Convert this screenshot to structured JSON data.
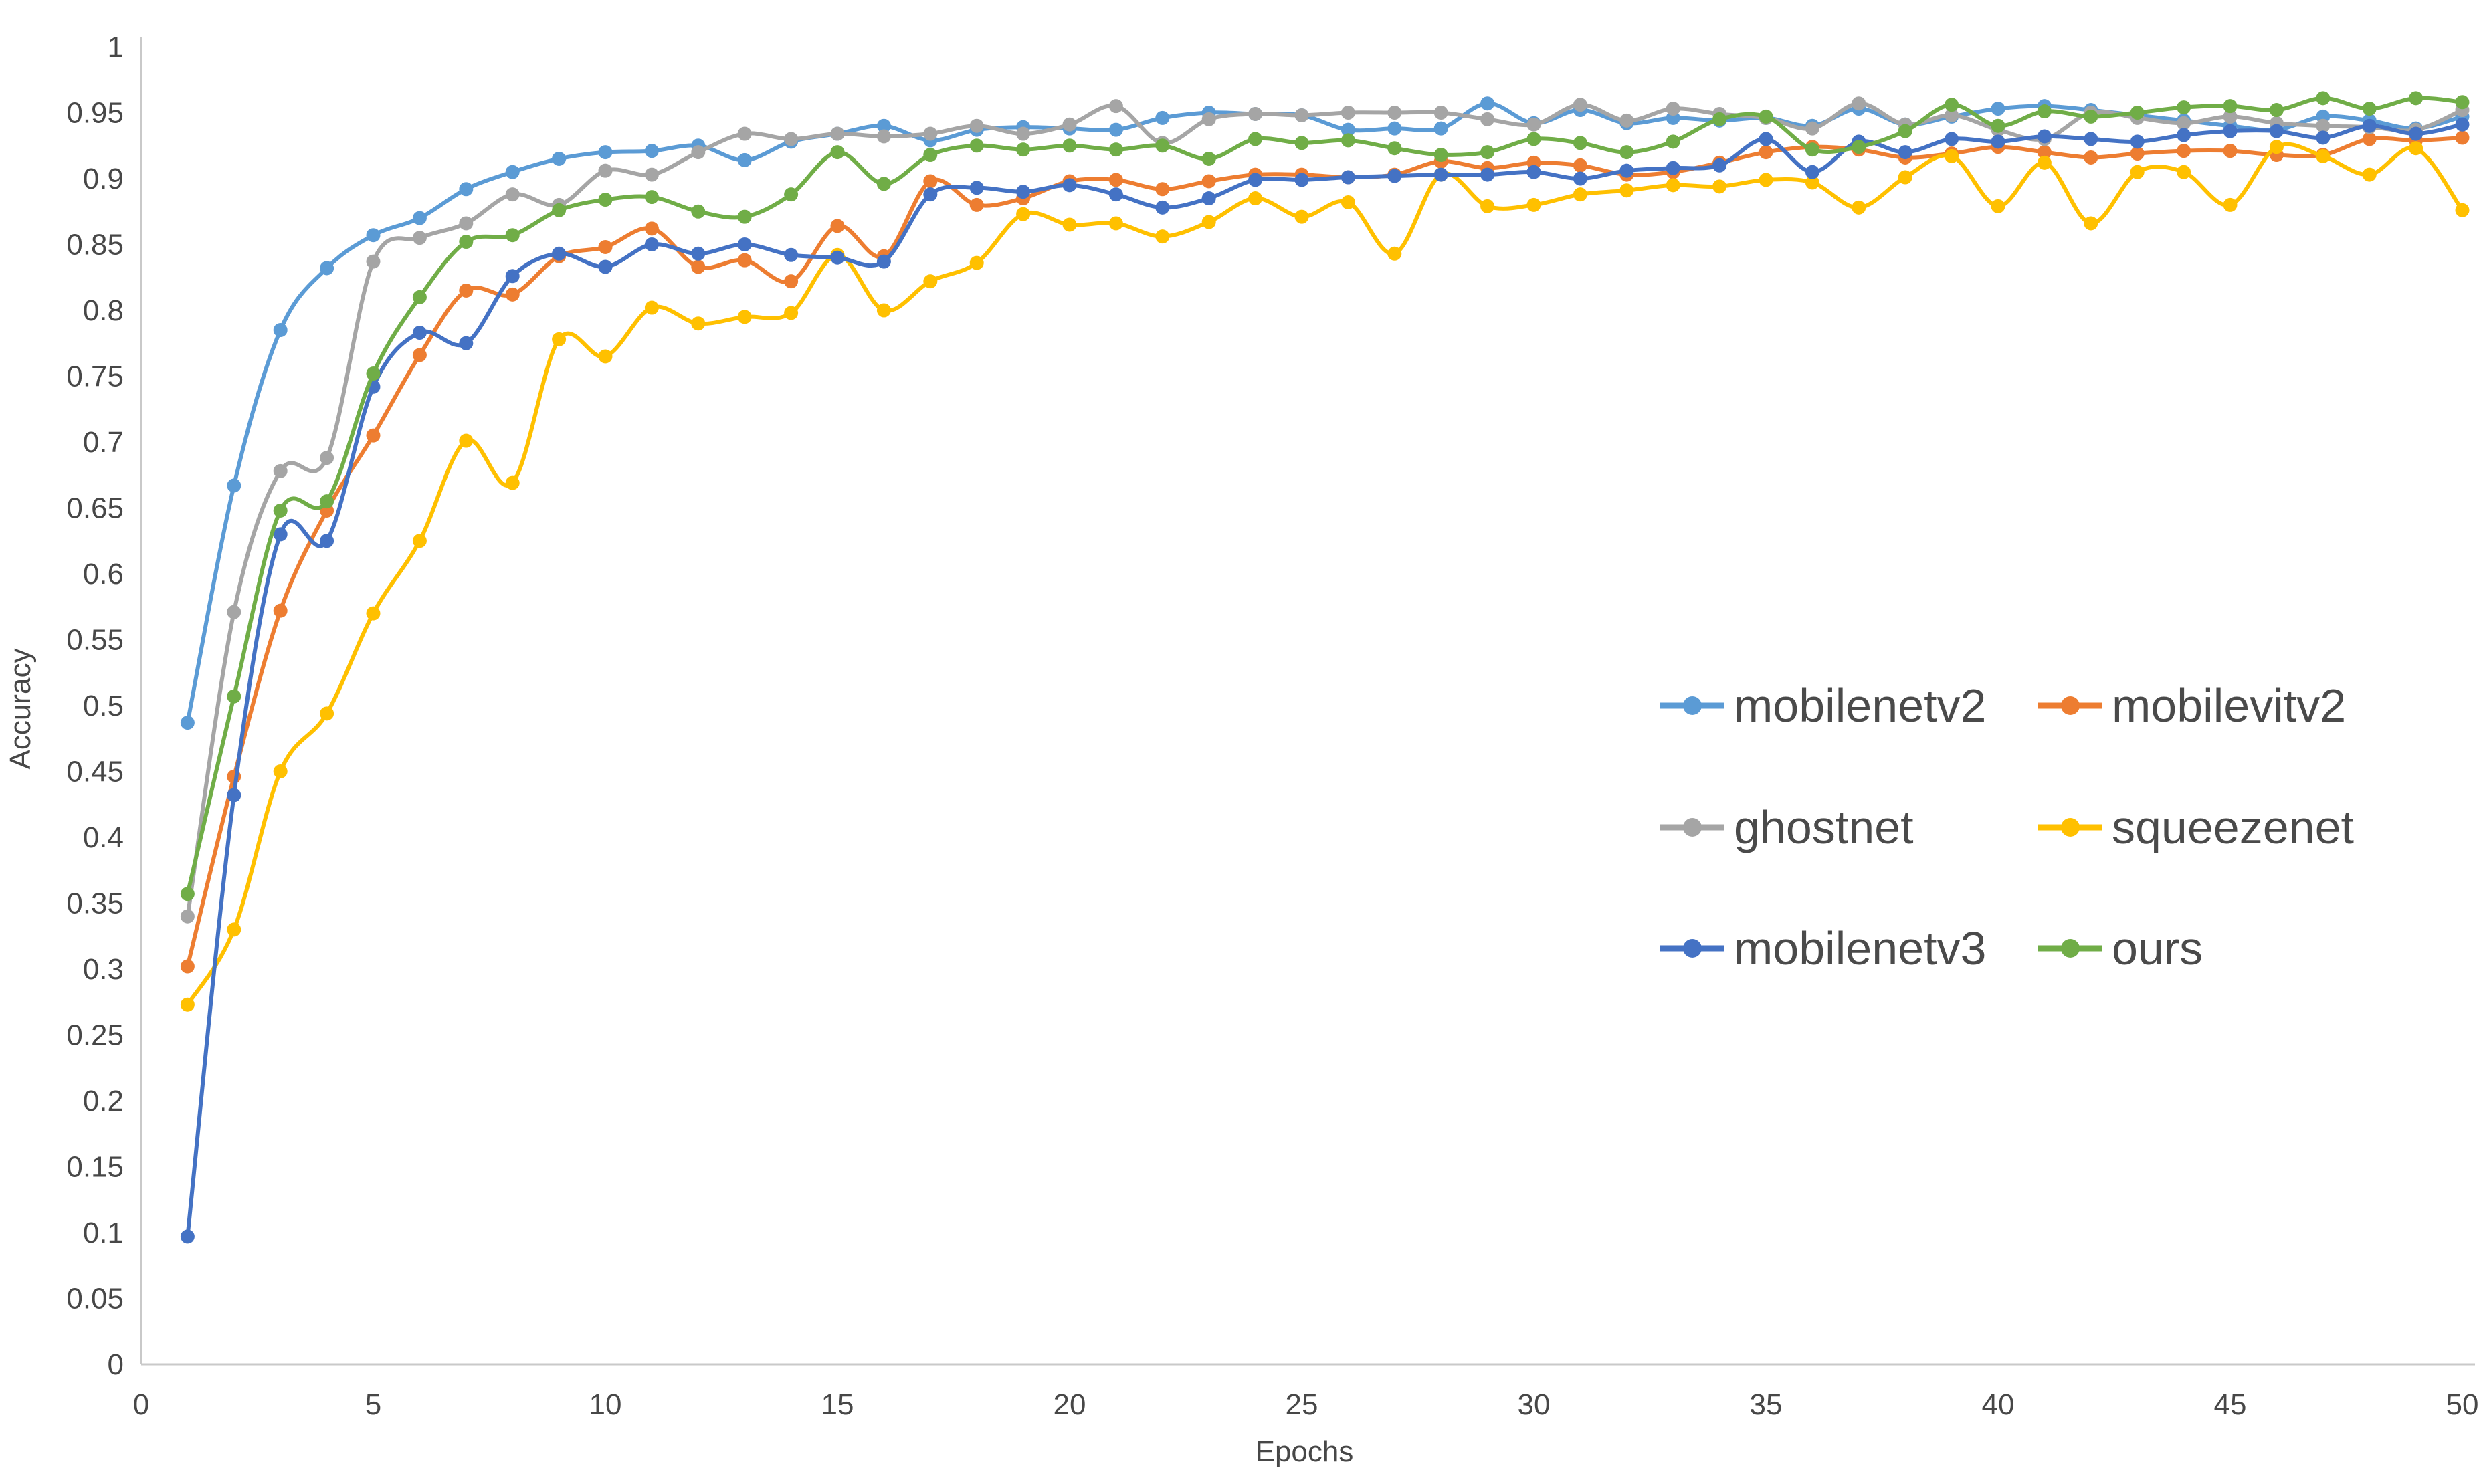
{
  "chart_data": {
    "type": "line",
    "title": "",
    "xlabel": "Epochs",
    "ylabel": "Accuracy",
    "xlim": [
      0,
      50
    ],
    "ylim": [
      0,
      1
    ],
    "x_ticks": [
      0,
      5,
      10,
      15,
      20,
      25,
      30,
      35,
      40,
      45,
      50
    ],
    "y_ticks": [
      0,
      0.05,
      0.1,
      0.15,
      0.2,
      0.25,
      0.3,
      0.35,
      0.4,
      0.45,
      0.5,
      0.55,
      0.6,
      0.65,
      0.7,
      0.75,
      0.8,
      0.85,
      0.9,
      0.95,
      1
    ],
    "y_tick_labels": [
      "0",
      "0.05",
      "0.1",
      "0.15",
      "0.2",
      "0.25",
      "0.3",
      "0.35",
      "0.4",
      "0.45",
      "0.5",
      "0.55",
      "0.6",
      "0.65",
      "0.7",
      "0.75",
      "0.8",
      "0.85",
      "0.9",
      "0.95",
      "1"
    ],
    "grid": "off",
    "legend_position": "middle-right",
    "marker": "circle",
    "line_smoothing": true,
    "axis_color": "#c9c9c9",
    "text_color": "#474747",
    "x": [
      1,
      2,
      3,
      4,
      5,
      6,
      7,
      8,
      9,
      10,
      11,
      12,
      13,
      14,
      15,
      16,
      17,
      18,
      19,
      20,
      21,
      22,
      23,
      24,
      25,
      26,
      27,
      28,
      29,
      30,
      31,
      32,
      33,
      34,
      35,
      36,
      37,
      38,
      39,
      40,
      41,
      42,
      43,
      44,
      45,
      46,
      47,
      48,
      49,
      50
    ],
    "series": [
      {
        "name": "mobilenetv2",
        "color": "#5B9BD5",
        "values": [
          0.487,
          0.667,
          0.785,
          0.832,
          0.857,
          0.87,
          0.892,
          0.905,
          0.915,
          0.92,
          0.921,
          0.925,
          0.914,
          0.928,
          0.934,
          0.94,
          0.929,
          0.937,
          0.939,
          0.938,
          0.937,
          0.946,
          0.95,
          0.949,
          0.948,
          0.937,
          0.938,
          0.938,
          0.957,
          0.942,
          0.952,
          0.942,
          0.946,
          0.944,
          0.946,
          0.94,
          0.953,
          0.941,
          0.947,
          0.953,
          0.955,
          0.952,
          0.948,
          0.944,
          0.94,
          0.937,
          0.947,
          0.944,
          0.938,
          0.947
        ]
      },
      {
        "name": "mobilevitv2",
        "color": "#ED7D31",
        "values": [
          0.302,
          0.446,
          0.572,
          0.648,
          0.705,
          0.766,
          0.815,
          0.812,
          0.841,
          0.848,
          0.862,
          0.833,
          0.838,
          0.822,
          0.864,
          0.841,
          0.898,
          0.88,
          0.885,
          0.898,
          0.899,
          0.892,
          0.898,
          0.903,
          0.903,
          0.901,
          0.903,
          0.913,
          0.908,
          0.912,
          0.91,
          0.903,
          0.905,
          0.912,
          0.92,
          0.924,
          0.922,
          0.916,
          0.919,
          0.924,
          0.92,
          0.916,
          0.919,
          0.921,
          0.921,
          0.918,
          0.918,
          0.93,
          0.929,
          0.931
        ]
      },
      {
        "name": "ghostnet",
        "color": "#A5A5A5",
        "values": [
          0.34,
          0.571,
          0.678,
          0.688,
          0.837,
          0.855,
          0.866,
          0.888,
          0.88,
          0.906,
          0.903,
          0.92,
          0.934,
          0.93,
          0.934,
          0.932,
          0.934,
          0.94,
          0.934,
          0.941,
          0.955,
          0.927,
          0.945,
          0.949,
          0.948,
          0.95,
          0.95,
          0.95,
          0.945,
          0.941,
          0.956,
          0.944,
          0.953,
          0.949,
          0.946,
          0.938,
          0.957,
          0.941,
          0.948,
          0.937,
          0.93,
          0.95,
          0.946,
          0.942,
          0.947,
          0.942,
          0.94,
          0.939,
          0.937,
          0.952
        ]
      },
      {
        "name": "squeezenet",
        "color": "#FFC000",
        "values": [
          0.273,
          0.33,
          0.45,
          0.494,
          0.57,
          0.625,
          0.701,
          0.669,
          0.778,
          0.765,
          0.802,
          0.79,
          0.795,
          0.798,
          0.842,
          0.8,
          0.822,
          0.836,
          0.873,
          0.865,
          0.866,
          0.856,
          0.867,
          0.885,
          0.871,
          0.882,
          0.843,
          0.903,
          0.879,
          0.88,
          0.888,
          0.891,
          0.895,
          0.894,
          0.899,
          0.897,
          0.878,
          0.901,
          0.917,
          0.879,
          0.912,
          0.866,
          0.905,
          0.905,
          0.88,
          0.924,
          0.917,
          0.903,
          0.923,
          0.876
        ]
      },
      {
        "name": "mobilenetv3",
        "color": "#4472C4",
        "values": [
          0.097,
          0.432,
          0.63,
          0.625,
          0.742,
          0.783,
          0.775,
          0.826,
          0.843,
          0.833,
          0.85,
          0.843,
          0.85,
          0.842,
          0.84,
          0.837,
          0.888,
          0.893,
          0.89,
          0.895,
          0.888,
          0.878,
          0.885,
          0.899,
          0.899,
          0.901,
          0.902,
          0.903,
          0.903,
          0.905,
          0.9,
          0.906,
          0.908,
          0.91,
          0.93,
          0.905,
          0.928,
          0.92,
          0.93,
          0.928,
          0.932,
          0.93,
          0.928,
          0.933,
          0.936,
          0.936,
          0.931,
          0.94,
          0.934,
          0.941
        ]
      },
      {
        "name": "ours",
        "color": "#70AD47",
        "values": [
          0.357,
          0.507,
          0.648,
          0.655,
          0.752,
          0.81,
          0.852,
          0.857,
          0.876,
          0.884,
          0.886,
          0.875,
          0.871,
          0.888,
          0.92,
          0.896,
          0.918,
          0.925,
          0.922,
          0.925,
          0.922,
          0.925,
          0.915,
          0.93,
          0.927,
          0.929,
          0.923,
          0.918,
          0.92,
          0.93,
          0.927,
          0.92,
          0.928,
          0.945,
          0.947,
          0.922,
          0.924,
          0.936,
          0.956,
          0.94,
          0.951,
          0.947,
          0.95,
          0.954,
          0.955,
          0.952,
          0.961,
          0.953,
          0.961,
          0.958
        ]
      }
    ],
    "legend_columns": [
      [
        "mobilenetv2",
        "ghostnet",
        "mobilenetv3"
      ],
      [
        "mobilevitv2",
        "squeezenet",
        "ours"
      ]
    ]
  }
}
